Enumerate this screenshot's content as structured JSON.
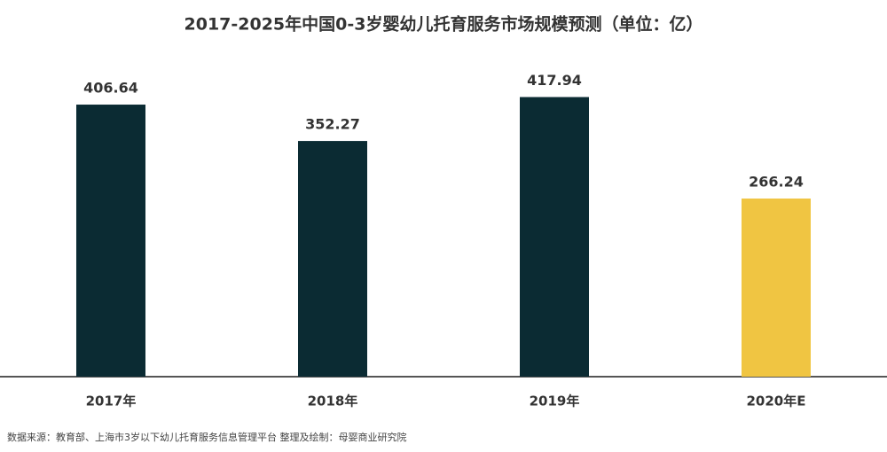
{
  "chart_data": {
    "type": "bar",
    "title": "2017-2025年中国0-3岁婴幼儿托育服务市场规模预测（单位：亿）",
    "categories": [
      "2017年",
      "2018年",
      "2019年",
      "2020年E"
    ],
    "values": [
      406.64,
      352.27,
      417.94,
      266.24
    ],
    "colors": [
      "#0b2b33",
      "#0b2b33",
      "#0b2b33",
      "#f0c542"
    ],
    "source": "数据来源：教育部、上海市3岁以下幼儿托育服务信息管理平台    整理及绘制：母婴商业研究院"
  }
}
